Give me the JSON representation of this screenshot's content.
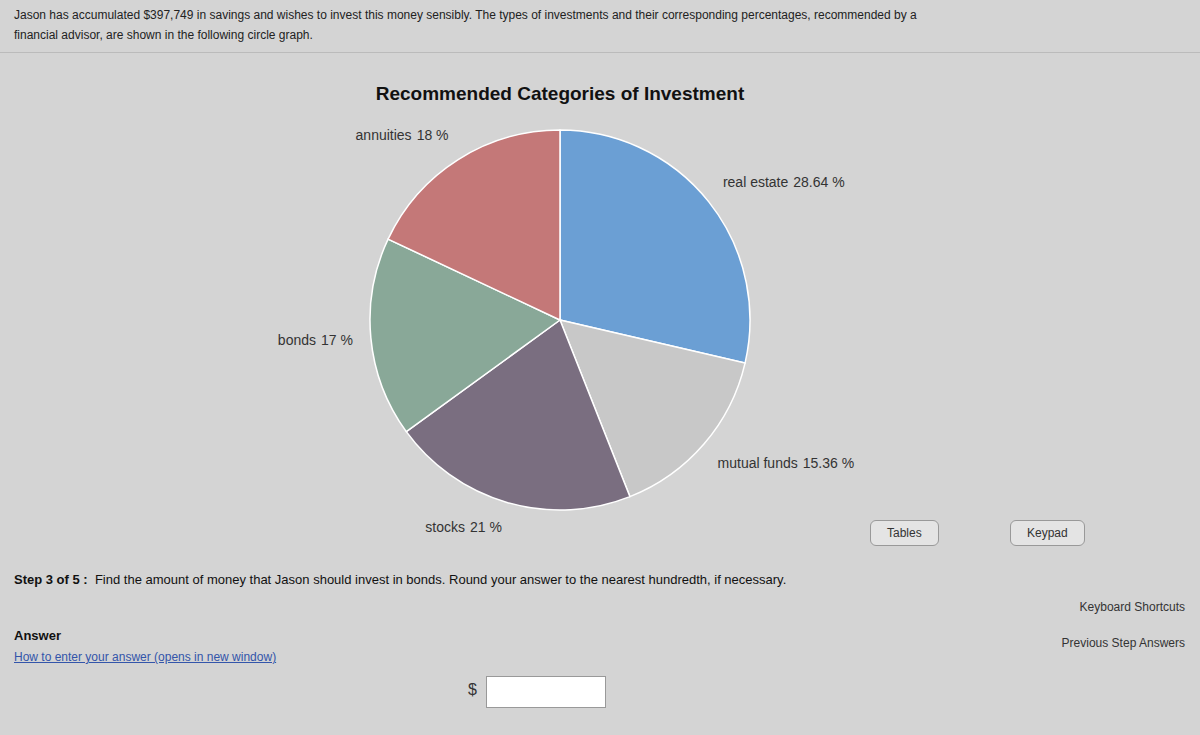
{
  "chart_data": {
    "type": "pie",
    "title": "Recommended Categories of Investment",
    "categories": [
      "real estate",
      "mutual funds",
      "stocks",
      "bonds",
      "annuities"
    ],
    "values": [
      28.64,
      15.36,
      21.0,
      17.0,
      18.0
    ],
    "value_labels": [
      "28.64 %",
      "15.36 %",
      "21 %",
      "17 %",
      "18 %"
    ],
    "colors": [
      "#6b9fd4",
      "#c8c8c8",
      "#7a6e80",
      "#89a898",
      "#c47878"
    ],
    "data_labels": true,
    "annotations": [
      "Jason has accumulated $397,749 in savings and wishes to invest this money sensibly. The types of investments and their corresponding percentages, recommended by a",
      "financial advisor, are shown in the following circle graph.",
      "Step 3 of 5 :",
      "  Find the amount of money that Jason should invest in bonds. Round your answer to the nearest hundredth, if necessary.",
      "Answer",
      "How to enter your answer (opens in new window)",
      "$",
      "Tables",
      "Keypad",
      "Keyboard Shortcuts",
      "Previous Step Answers"
    ]
  }
}
